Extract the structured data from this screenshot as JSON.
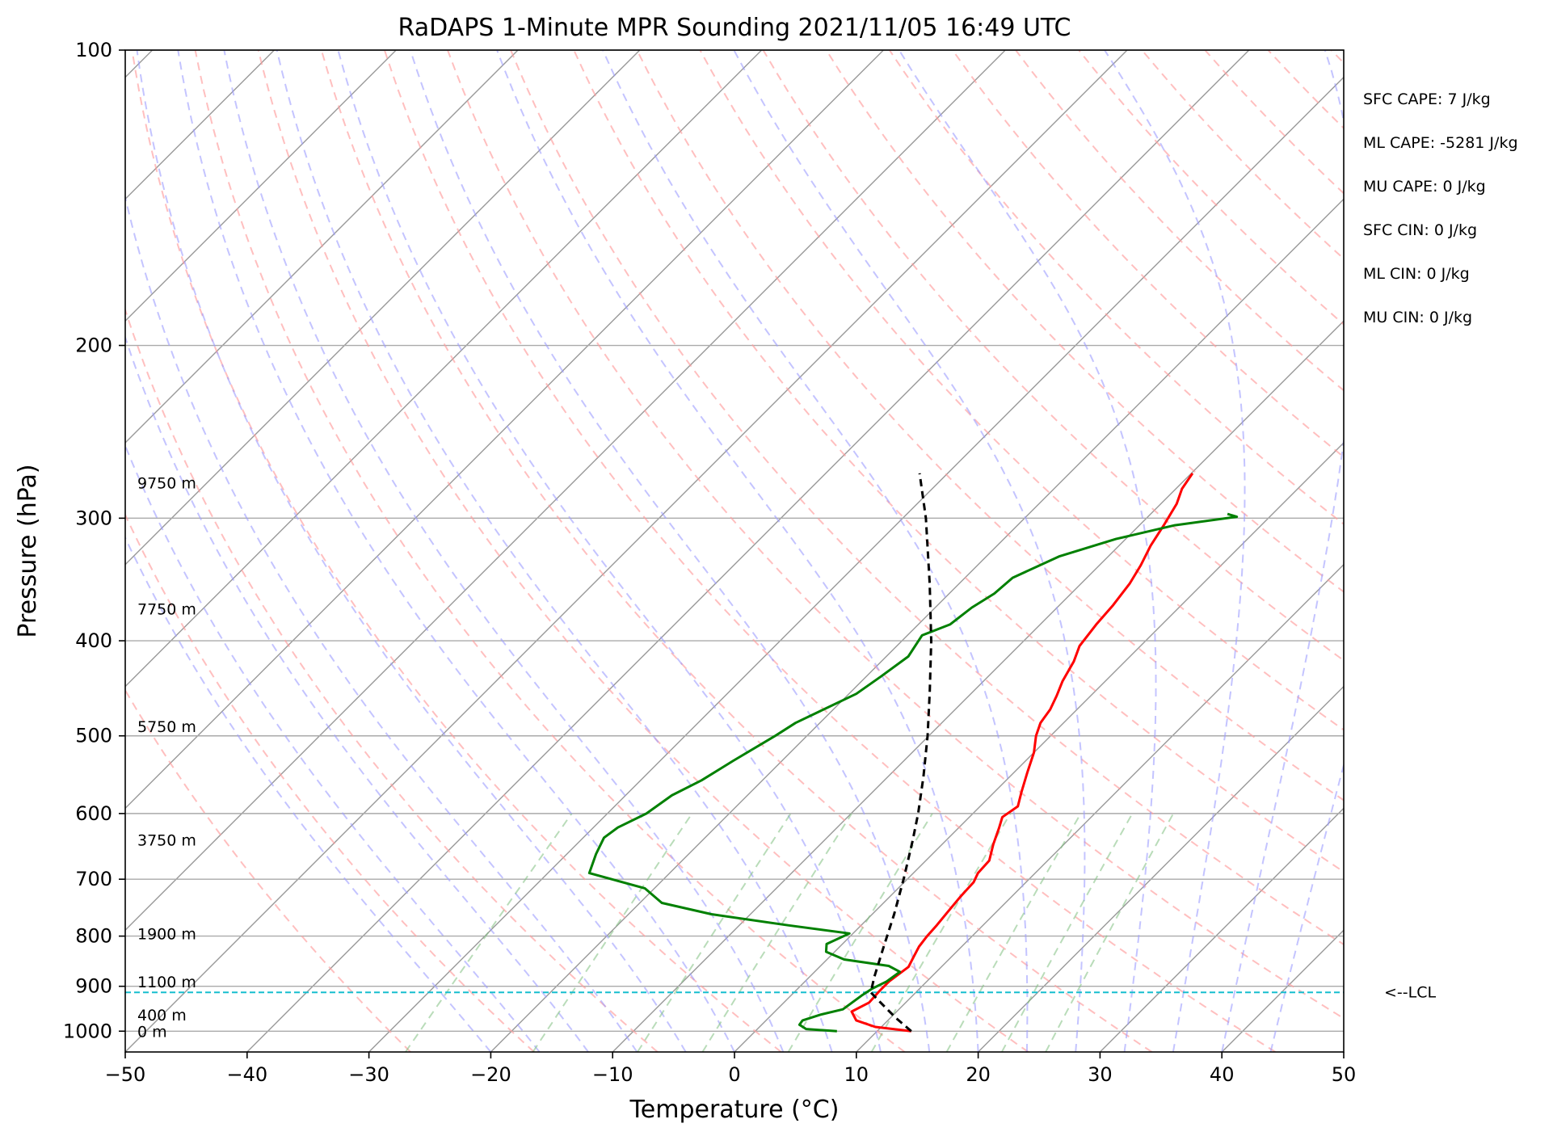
{
  "chart_data": {
    "type": "line",
    "title": "RaDAPS 1-Minute MPR Sounding 2021/11/05 16:49 UTC",
    "xlabel": "Temperature (°C)",
    "ylabel": "Pressure (hPa)",
    "xlim": [
      -50,
      50
    ],
    "ylim": [
      1050,
      100
    ],
    "y_scale": "log",
    "x_ticks": [
      "−50",
      "−40",
      "−30",
      "−20",
      "−10",
      "0",
      "10",
      "20",
      "30",
      "40",
      "50"
    ],
    "y_ticks": [
      {
        "p": 100,
        "label": "100"
      },
      {
        "p": 200,
        "label": "200"
      },
      {
        "p": 300,
        "label": "300"
      },
      {
        "p": 400,
        "label": "400"
      },
      {
        "p": 500,
        "label": "500"
      },
      {
        "p": 600,
        "label": "600"
      },
      {
        "p": 700,
        "label": "700"
      },
      {
        "p": 800,
        "label": "800"
      },
      {
        "p": 900,
        "label": "900"
      },
      {
        "p": 1000,
        "label": "1000"
      }
    ],
    "grid": true,
    "height_labels": [
      {
        "p": 1000,
        "label": "0 m"
      },
      {
        "p": 962,
        "label": "400 m"
      },
      {
        "p": 890,
        "label": "1100 m"
      },
      {
        "p": 795,
        "label": "1900 m"
      },
      {
        "p": 638,
        "label": "3750 m"
      },
      {
        "p": 489,
        "label": "5750 m"
      },
      {
        "p": 371,
        "label": "7750 m"
      },
      {
        "p": 276,
        "label": "9750 m"
      }
    ],
    "indices": [
      "SFC CAPE: 7 J/kg",
      "ML CAPE: -5281 J/kg",
      "MU CAPE: 0 J/kg",
      "SFC CIN: 0 J/kg",
      "ML CIN: 0 J/kg",
      "MU CIN: 0 J/kg"
    ],
    "lcl": {
      "p": 913,
      "label": "<--LCL"
    },
    "series": [
      {
        "color": "#ff0000",
        "points": [
          [
            1000,
            12.8
          ],
          [
            990,
            9.5
          ],
          [
            975,
            7.4
          ],
          [
            955,
            6.3
          ],
          [
            935,
            7.0
          ],
          [
            910,
            6.9
          ],
          [
            890,
            6.9
          ],
          [
            860,
            7.3
          ],
          [
            840,
            6.9
          ],
          [
            820,
            6.5
          ],
          [
            800,
            6.3
          ],
          [
            780,
            6.2
          ],
          [
            755,
            6.0
          ],
          [
            730,
            5.8
          ],
          [
            705,
            5.7
          ],
          [
            690,
            5.3
          ],
          [
            670,
            5.2
          ],
          [
            645,
            4.2
          ],
          [
            620,
            3.3
          ],
          [
            605,
            2.7
          ],
          [
            590,
            3.1
          ],
          [
            570,
            2.2
          ],
          [
            545,
            1.1
          ],
          [
            520,
            0.0
          ],
          [
            500,
            -1.2
          ],
          [
            485,
            -1.9
          ],
          [
            470,
            -2.2
          ],
          [
            455,
            -2.8
          ],
          [
            440,
            -3.5
          ],
          [
            420,
            -4.2
          ],
          [
            405,
            -5.0
          ],
          [
            385,
            -5.4
          ],
          [
            368,
            -5.6
          ],
          [
            350,
            -6.0
          ],
          [
            335,
            -6.6
          ],
          [
            320,
            -7.4
          ],
          [
            305,
            -8.0
          ],
          [
            290,
            -8.7
          ],
          [
            280,
            -9.5
          ],
          [
            270,
            -9.9
          ]
        ]
      },
      {
        "color": "#008000",
        "points": [
          [
            1000,
            6.7
          ],
          [
            995,
            4.0
          ],
          [
            985,
            3.1
          ],
          [
            975,
            3.0
          ],
          [
            962,
            4.0
          ],
          [
            950,
            5.4
          ],
          [
            935,
            5.6
          ],
          [
            920,
            5.8
          ],
          [
            905,
            6.1
          ],
          [
            890,
            6.7
          ],
          [
            870,
            7.0
          ],
          [
            858,
            5.6
          ],
          [
            845,
            1.4
          ],
          [
            830,
            -0.7
          ],
          [
            815,
            -1.3
          ],
          [
            795,
            -0.3
          ],
          [
            780,
            -6.0
          ],
          [
            760,
            -13.2
          ],
          [
            740,
            -18.2
          ],
          [
            715,
            -20.8
          ],
          [
            690,
            -26.6
          ],
          [
            660,
            -27.6
          ],
          [
            635,
            -28.3
          ],
          [
            620,
            -28.0
          ],
          [
            600,
            -26.8
          ],
          [
            575,
            -26.2
          ],
          [
            555,
            -25.0
          ],
          [
            530,
            -24.0
          ],
          [
            500,
            -22.6
          ],
          [
            485,
            -22.0
          ],
          [
            470,
            -20.8
          ],
          [
            453,
            -19.4
          ],
          [
            435,
            -18.8
          ],
          [
            415,
            -18.2
          ],
          [
            395,
            -18.8
          ],
          [
            385,
            -17.4
          ],
          [
            370,
            -17.0
          ],
          [
            358,
            -16.3
          ],
          [
            345,
            -16.1
          ],
          [
            328,
            -14.0
          ],
          [
            315,
            -10.8
          ],
          [
            305,
            -7.1
          ],
          [
            299,
            -2.7
          ],
          [
            297,
            -3.7
          ]
        ]
      },
      {
        "color": "#000000",
        "dashed": true,
        "points": [
          [
            1000,
            12.8
          ],
          [
            970,
            10.5
          ],
          [
            940,
            8.3
          ],
          [
            913,
            6.3
          ],
          [
            880,
            5.3
          ],
          [
            820,
            3.6
          ],
          [
            760,
            1.8
          ],
          [
            700,
            -0.3
          ],
          [
            640,
            -2.7
          ],
          [
            600,
            -4.5
          ],
          [
            550,
            -7.1
          ],
          [
            500,
            -10.1
          ],
          [
            450,
            -13.6
          ],
          [
            400,
            -17.6
          ],
          [
            350,
            -22.4
          ],
          [
            300,
            -28.1
          ],
          [
            270,
            -32.3
          ]
        ]
      }
    ]
  }
}
